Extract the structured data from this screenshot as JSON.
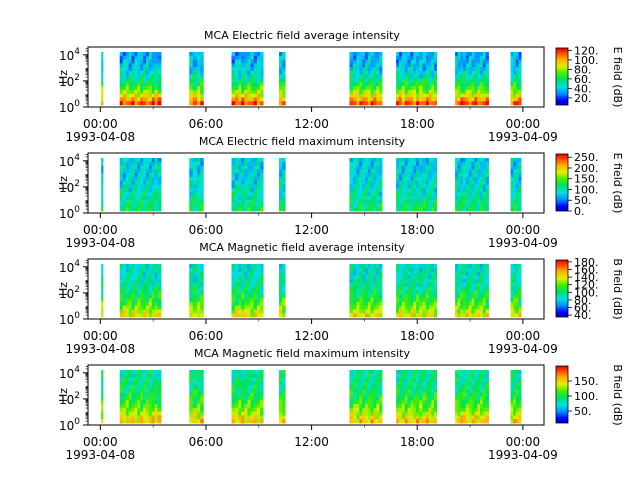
{
  "chart_data": [
    {
      "type": "heatmap",
      "title": "MCA  Electric field average intensity",
      "ylabel": "Hz",
      "y_scale": "log",
      "y_ticks": [
        {
          "exp": "0"
        },
        {
          "exp": "2"
        },
        {
          "exp": "4"
        }
      ],
      "x_ticks": [
        {
          "time": "00:00",
          "date": "1993-04-08",
          "hour": 0
        },
        {
          "time": "06:00",
          "date": "",
          "hour": 6
        },
        {
          "time": "12:00",
          "date": "",
          "hour": 12
        },
        {
          "time": "18:00",
          "date": "",
          "hour": 18
        },
        {
          "time": "00:00",
          "date": "1993-04-09",
          "hour": 24
        }
      ],
      "xlim_hours": [
        -0.7,
        25.2
      ],
      "colorbar": {
        "label": "E field (dB)",
        "min": 5,
        "max": 125,
        "ticks": [
          "20.",
          "40.",
          "60.",
          "80.",
          "100.",
          "120."
        ]
      },
      "time_blocks_hours": [
        [
          0.05,
          0.15
        ],
        [
          1.1,
          1.45
        ],
        [
          1.45,
          3.25
        ],
        [
          3.25,
          3.45
        ],
        [
          5.05,
          5.25
        ],
        [
          5.25,
          5.5
        ],
        [
          5.5,
          5.85
        ],
        [
          7.45,
          7.85
        ],
        [
          7.85,
          8.0
        ],
        [
          8.0,
          9.25
        ],
        [
          10.15,
          10.5
        ],
        [
          14.15,
          14.55
        ],
        [
          14.55,
          16.0
        ],
        [
          16.8,
          18.1
        ],
        [
          18.1,
          18.5
        ],
        [
          18.5,
          19.1
        ],
        [
          20.15,
          20.6
        ],
        [
          20.6,
          22.05
        ],
        [
          23.3,
          23.6
        ],
        [
          23.6,
          23.9
        ]
      ],
      "intensity_profile": [
        0.25,
        0.5,
        0.65,
        0.9
      ]
    },
    {
      "type": "heatmap",
      "title": "MCA  Electric field maximum intensity",
      "ylabel": "Hz",
      "y_scale": "log",
      "y_ticks": [
        {
          "exp": "0"
        },
        {
          "exp": "2"
        },
        {
          "exp": "4"
        }
      ],
      "x_ticks": [
        {
          "time": "00:00",
          "date": "1993-04-08",
          "hour": 0
        },
        {
          "time": "06:00",
          "date": "",
          "hour": 6
        },
        {
          "time": "12:00",
          "date": "",
          "hour": 12
        },
        {
          "time": "18:00",
          "date": "",
          "hour": 18
        },
        {
          "time": "00:00",
          "date": "1993-04-09",
          "hour": 24
        }
      ],
      "xlim_hours": [
        -0.7,
        25.2
      ],
      "colorbar": {
        "label": "E field (dB)",
        "min": 0,
        "max": 265,
        "ticks": [
          "0.",
          "50.",
          "100.",
          "150.",
          "200.",
          "250."
        ]
      },
      "time_blocks_hours": [
        [
          0.05,
          0.15
        ],
        [
          1.1,
          1.45
        ],
        [
          1.45,
          3.25
        ],
        [
          3.25,
          3.45
        ],
        [
          5.05,
          5.25
        ],
        [
          5.25,
          5.5
        ],
        [
          5.5,
          5.85
        ],
        [
          7.45,
          7.85
        ],
        [
          7.85,
          8.0
        ],
        [
          8.0,
          9.25
        ],
        [
          10.15,
          10.5
        ],
        [
          14.15,
          14.55
        ],
        [
          14.55,
          16.0
        ],
        [
          16.8,
          18.1
        ],
        [
          18.1,
          18.5
        ],
        [
          18.5,
          19.1
        ],
        [
          20.15,
          20.6
        ],
        [
          20.6,
          22.05
        ],
        [
          23.3,
          23.6
        ],
        [
          23.6,
          23.9
        ]
      ],
      "intensity_profile": [
        0.3,
        0.38,
        0.42,
        0.45
      ]
    },
    {
      "type": "heatmap",
      "title": "MCA  Magnetic field average intensity",
      "ylabel": "Hz",
      "y_scale": "log",
      "y_ticks": [
        {
          "exp": "0"
        },
        {
          "exp": "2"
        },
        {
          "exp": "4"
        }
      ],
      "x_ticks": [
        {
          "time": "00:00",
          "date": "1993-04-08",
          "hour": 0
        },
        {
          "time": "06:00",
          "date": "",
          "hour": 6
        },
        {
          "time": "12:00",
          "date": "",
          "hour": 12
        },
        {
          "time": "18:00",
          "date": "",
          "hour": 18
        },
        {
          "time": "00:00",
          "date": "1993-04-09",
          "hour": 24
        }
      ],
      "xlim_hours": [
        -0.7,
        25.2
      ],
      "colorbar": {
        "label": "B field (dB)",
        "min": 35,
        "max": 185,
        "ticks": [
          "40.",
          "60.",
          "80.",
          "100.",
          "120.",
          "140.",
          "160.",
          "180."
        ]
      },
      "time_blocks_hours": [
        [
          0.05,
          0.15
        ],
        [
          1.1,
          1.45
        ],
        [
          1.45,
          3.25
        ],
        [
          3.25,
          3.45
        ],
        [
          5.05,
          5.25
        ],
        [
          5.25,
          5.5
        ],
        [
          5.5,
          5.85
        ],
        [
          7.45,
          7.85
        ],
        [
          7.85,
          8.0
        ],
        [
          8.0,
          9.25
        ],
        [
          10.15,
          10.5
        ],
        [
          14.15,
          14.55
        ],
        [
          14.55,
          16.0
        ],
        [
          16.8,
          18.1
        ],
        [
          18.1,
          18.5
        ],
        [
          18.5,
          19.1
        ],
        [
          20.15,
          20.6
        ],
        [
          20.6,
          22.05
        ],
        [
          23.3,
          23.6
        ],
        [
          23.6,
          23.9
        ]
      ],
      "intensity_profile": [
        0.35,
        0.45,
        0.55,
        0.7
      ]
    },
    {
      "type": "heatmap",
      "title": "MCA  Magnetic field maximum intensity",
      "ylabel": "Hz",
      "y_scale": "log",
      "y_ticks": [
        {
          "exp": "0"
        },
        {
          "exp": "2"
        },
        {
          "exp": "4"
        }
      ],
      "x_ticks": [
        {
          "time": "00:00",
          "date": "1993-04-08",
          "hour": 0
        },
        {
          "time": "06:00",
          "date": "",
          "hour": 6
        },
        {
          "time": "12:00",
          "date": "",
          "hour": 12
        },
        {
          "time": "18:00",
          "date": "",
          "hour": 18
        },
        {
          "time": "00:00",
          "date": "1993-04-09",
          "hour": 24
        }
      ],
      "xlim_hours": [
        -0.7,
        25.2
      ],
      "colorbar": {
        "label": "B field (dB)",
        "min": 10,
        "max": 200,
        "ticks": [
          "50.",
          "100.",
          "150."
        ]
      },
      "time_blocks_hours": [
        [
          0.05,
          0.15
        ],
        [
          1.1,
          1.45
        ],
        [
          1.45,
          3.25
        ],
        [
          3.25,
          3.45
        ],
        [
          5.05,
          5.25
        ],
        [
          5.25,
          5.5
        ],
        [
          5.5,
          5.85
        ],
        [
          7.45,
          7.85
        ],
        [
          7.85,
          8.0
        ],
        [
          8.0,
          9.25
        ],
        [
          10.15,
          10.5
        ],
        [
          14.15,
          14.55
        ],
        [
          14.55,
          16.0
        ],
        [
          16.8,
          18.1
        ],
        [
          18.1,
          18.5
        ],
        [
          18.5,
          19.1
        ],
        [
          20.15,
          20.6
        ],
        [
          20.6,
          22.05
        ],
        [
          23.3,
          23.6
        ],
        [
          23.6,
          23.9
        ]
      ],
      "intensity_profile": [
        0.4,
        0.5,
        0.6,
        0.75
      ]
    }
  ]
}
